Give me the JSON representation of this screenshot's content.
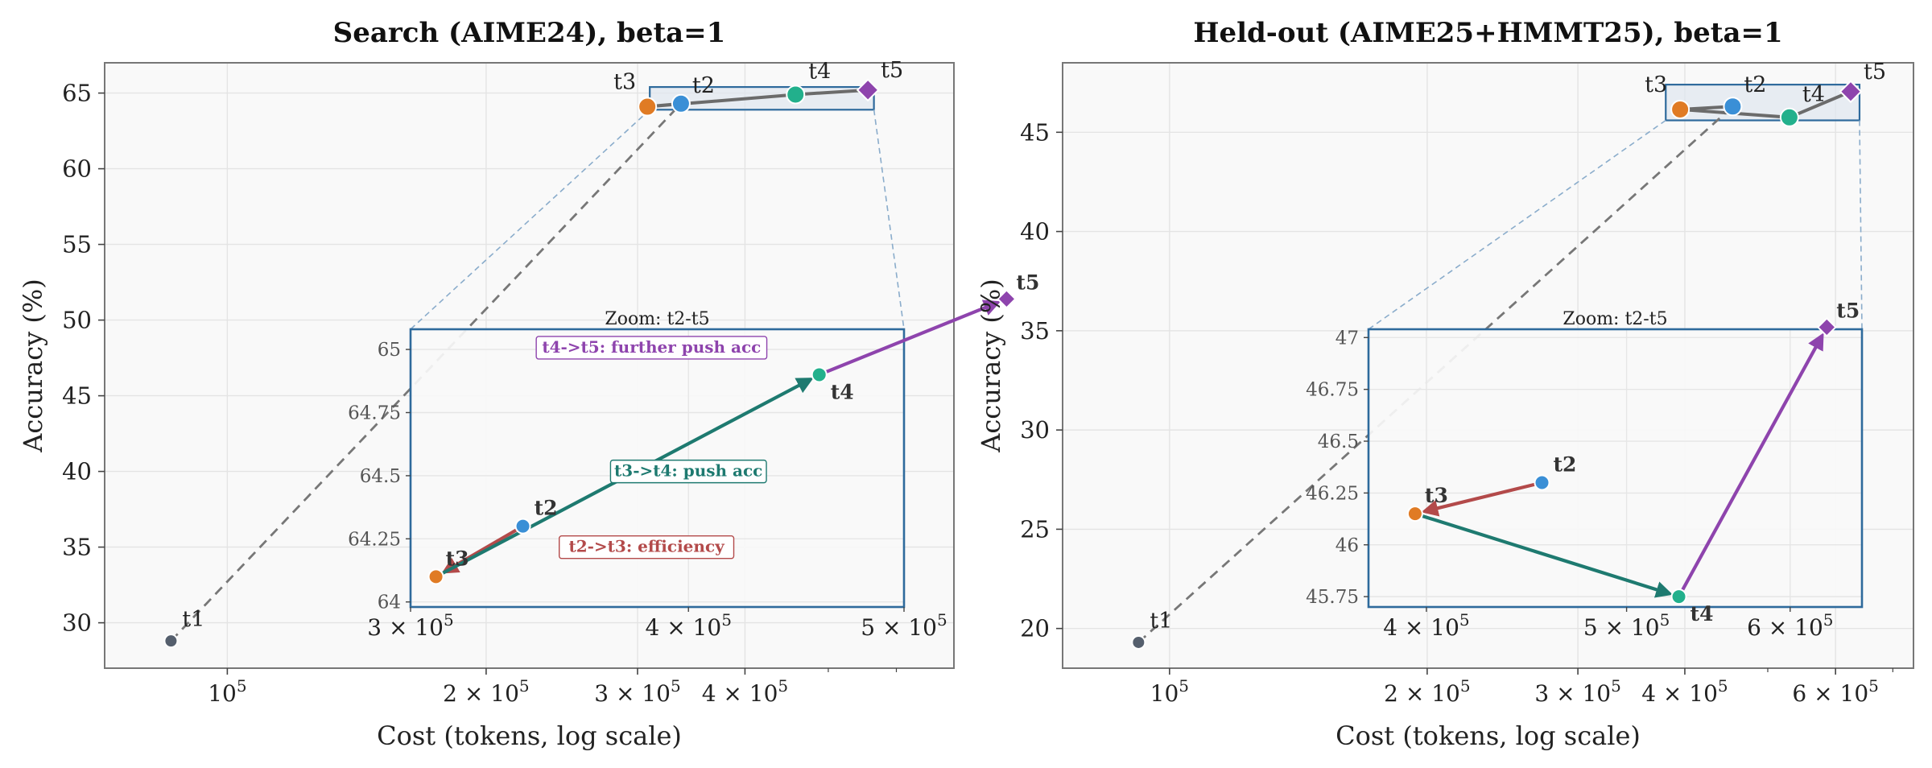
{
  "chart_data": [
    {
      "type": "scatter",
      "title": "Search (AIME24), beta=1",
      "xlabel": "Cost (tokens, log scale)",
      "ylabel": "Accuracy (%)",
      "xscale": "log",
      "grid": true,
      "xlim": [
        72000,
        700000
      ],
      "ylim": [
        27,
        67
      ],
      "xticks": [
        {
          "v": 100000,
          "b": "10",
          "e": "5"
        },
        {
          "v": 200000,
          "b": "2 × 10",
          "e": "5"
        },
        {
          "v": 300000,
          "b": "3 × 10",
          "e": "5"
        },
        {
          "v": 400000,
          "b": "4 × 10",
          "e": "5"
        }
      ],
      "yticks": [
        30,
        35,
        40,
        45,
        50,
        55,
        60,
        65
      ],
      "points": [
        {
          "label": "t1",
          "x": 86000,
          "y": 28.8,
          "color": "#555f6d",
          "marker": "circle"
        },
        {
          "label": "t2",
          "x": 337000,
          "y": 64.3,
          "color": "#3a8fd6",
          "marker": "circle"
        },
        {
          "label": "t3",
          "x": 308000,
          "y": 64.1,
          "color": "#e07b24",
          "marker": "circle"
        },
        {
          "label": "t4",
          "x": 458000,
          "y": 64.9,
          "color": "#22b08c",
          "marker": "circle"
        },
        {
          "label": "t5",
          "x": 556000,
          "y": 65.2,
          "color": "#8e44ad",
          "marker": "diamond"
        }
      ],
      "inset": {
        "title": "Zoom: t2-t5",
        "xlim": [
          300000,
          500000
        ],
        "ylim": [
          63.98,
          65.08
        ],
        "xticks": [
          {
            "v": 300000,
            "b": "3 × 10",
            "e": "5"
          },
          {
            "v": 400000,
            "b": "4 × 10",
            "e": "5"
          },
          {
            "v": 500000,
            "b": "5 × 10",
            "e": "5"
          }
        ],
        "yticks": [
          {
            "v": 64,
            "t": "64"
          },
          {
            "v": 64.25,
            "t": "64.25"
          },
          {
            "v": 64.5,
            "t": "64.5"
          },
          {
            "v": 64.75,
            "t": "64.75"
          },
          {
            "v": 65,
            "t": "65"
          }
        ],
        "arrows": [
          {
            "from": "t2",
            "to": "t3",
            "color": "#b34a4a",
            "text": "t2->t3: efficiency",
            "tx": 383000,
            "ty": 64.22
          },
          {
            "from": "t3",
            "to": "t4",
            "color": "#1e7a70",
            "text": "t3->t4: push acc",
            "tx": 400000,
            "ty": 64.52
          },
          {
            "from": "t4",
            "to": "t5",
            "color": "#8e44ad",
            "text": "t4->t5: further push acc",
            "tx": 385000,
            "ty": 65.01
          }
        ]
      }
    },
    {
      "type": "scatter",
      "title": "Held-out (AIME25+HMMT25), beta=1",
      "xlabel": "Cost (tokens, log scale)",
      "ylabel": "Accuracy (%)",
      "xscale": "log",
      "grid": true,
      "xlim": [
        75000,
        740000
      ],
      "ylim": [
        18,
        48.5
      ],
      "xticks": [
        {
          "v": 100000,
          "b": "10",
          "e": "5"
        },
        {
          "v": 200000,
          "b": "2 × 10",
          "e": "5"
        },
        {
          "v": 300000,
          "b": "3 × 10",
          "e": "5"
        },
        {
          "v": 400000,
          "b": "4 × 10",
          "e": "5"
        },
        {
          "v": 600000,
          "b": "6 × 10",
          "e": "5"
        }
      ],
      "yticks": [
        20,
        25,
        30,
        35,
        40,
        45
      ],
      "points": [
        {
          "label": "t1",
          "x": 92000,
          "y": 19.3,
          "color": "#555f6d",
          "marker": "circle"
        },
        {
          "label": "t2",
          "x": 455000,
          "y": 46.3,
          "color": "#3a8fd6",
          "marker": "circle"
        },
        {
          "label": "t3",
          "x": 395000,
          "y": 46.15,
          "color": "#e07b24",
          "marker": "circle"
        },
        {
          "label": "t4",
          "x": 530000,
          "y": 45.75,
          "color": "#22b08c",
          "marker": "circle"
        },
        {
          "label": "t5",
          "x": 625000,
          "y": 47.05,
          "color": "#8e44ad",
          "marker": "diamond"
        }
      ],
      "inset": {
        "title": "Zoom: t2-t5",
        "xlim": [
          375000,
          650000
        ],
        "ylim": [
          45.7,
          47.04
        ],
        "xticks": [
          {
            "v": 400000,
            "b": "4 × 10",
            "e": "5"
          },
          {
            "v": 500000,
            "b": "5 × 10",
            "e": "5"
          },
          {
            "v": 600000,
            "b": "6 × 10",
            "e": "5"
          }
        ],
        "yticks": [
          {
            "v": 45.75,
            "t": "45.75"
          },
          {
            "v": 46,
            "t": "46"
          },
          {
            "v": 46.25,
            "t": "46.25"
          },
          {
            "v": 46.5,
            "t": "46.5"
          },
          {
            "v": 46.75,
            "t": "46.75"
          },
          {
            "v": 47,
            "t": "47"
          }
        ],
        "arrows": [
          {
            "from": "t2",
            "to": "t3",
            "color": "#b34a4a",
            "text": "",
            "tx": 0,
            "ty": 0
          },
          {
            "from": "t3",
            "to": "t4",
            "color": "#1e7a70",
            "text": "",
            "tx": 0,
            "ty": 0
          },
          {
            "from": "t4",
            "to": "t5",
            "color": "#8e44ad",
            "text": "",
            "tx": 0,
            "ty": 0
          }
        ]
      }
    }
  ]
}
